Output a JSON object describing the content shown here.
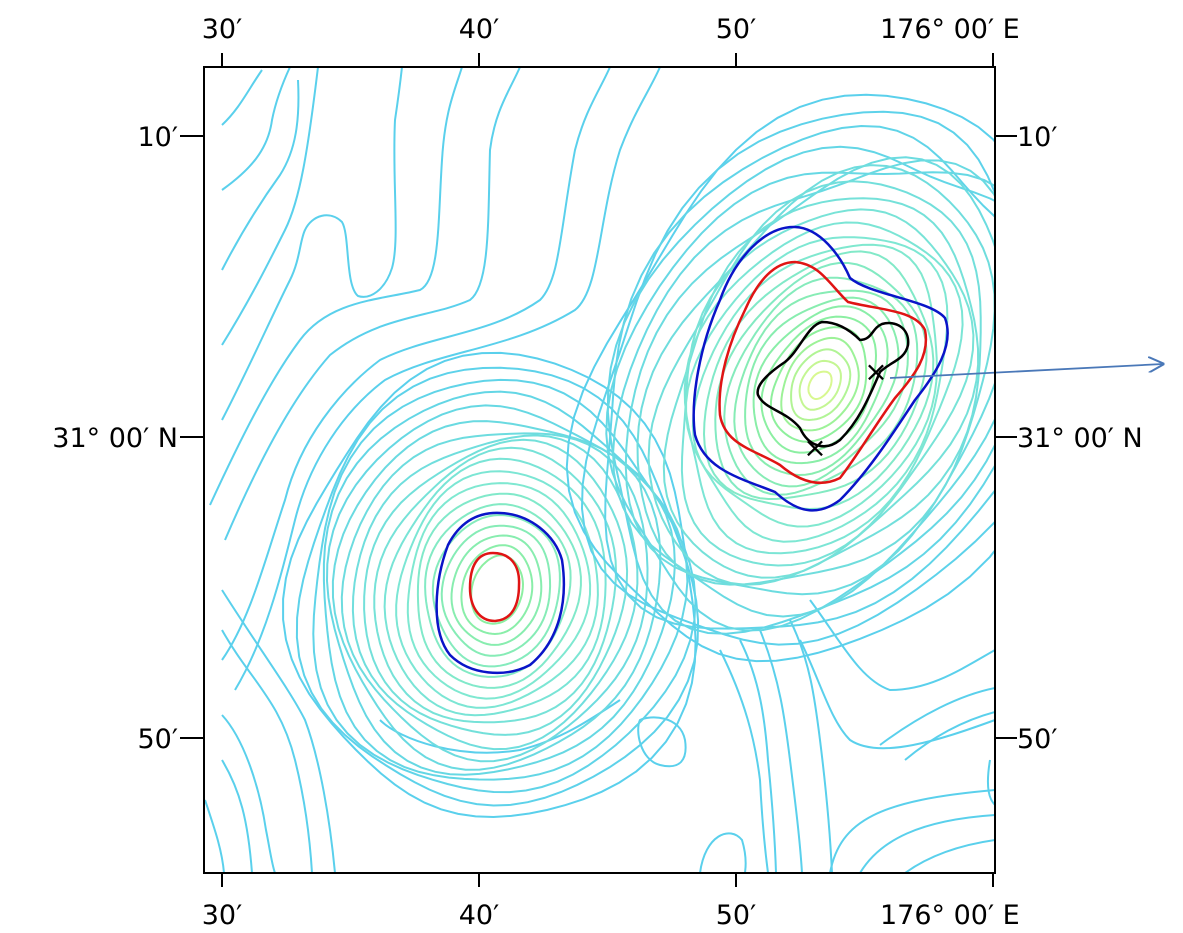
{
  "map": {
    "x_ticks": [
      {
        "label": "30′",
        "lon_min": 30
      },
      {
        "label": "40′",
        "lon_min": 40
      },
      {
        "label": "50′",
        "lon_min": 50
      },
      {
        "label": "176° 00′ E",
        "lon_min": 60
      }
    ],
    "y_ticks": [
      {
        "label": "10′",
        "lat_min": 10
      },
      {
        "label": "31° 00′ N",
        "lat_min": 0
      },
      {
        "label": "50′",
        "lat_min": -10
      }
    ],
    "contour_colors": {
      "outer": "#5ad0ec",
      "mid": "#7fe8d2",
      "inner": "#8ef09a",
      "core": "#d8f890",
      "blue_level": "#0a14c8",
      "red_level": "#e01414",
      "black_level": "#000000",
      "arrow": "#4a78b8"
    },
    "markers": [
      "×",
      "×"
    ]
  }
}
